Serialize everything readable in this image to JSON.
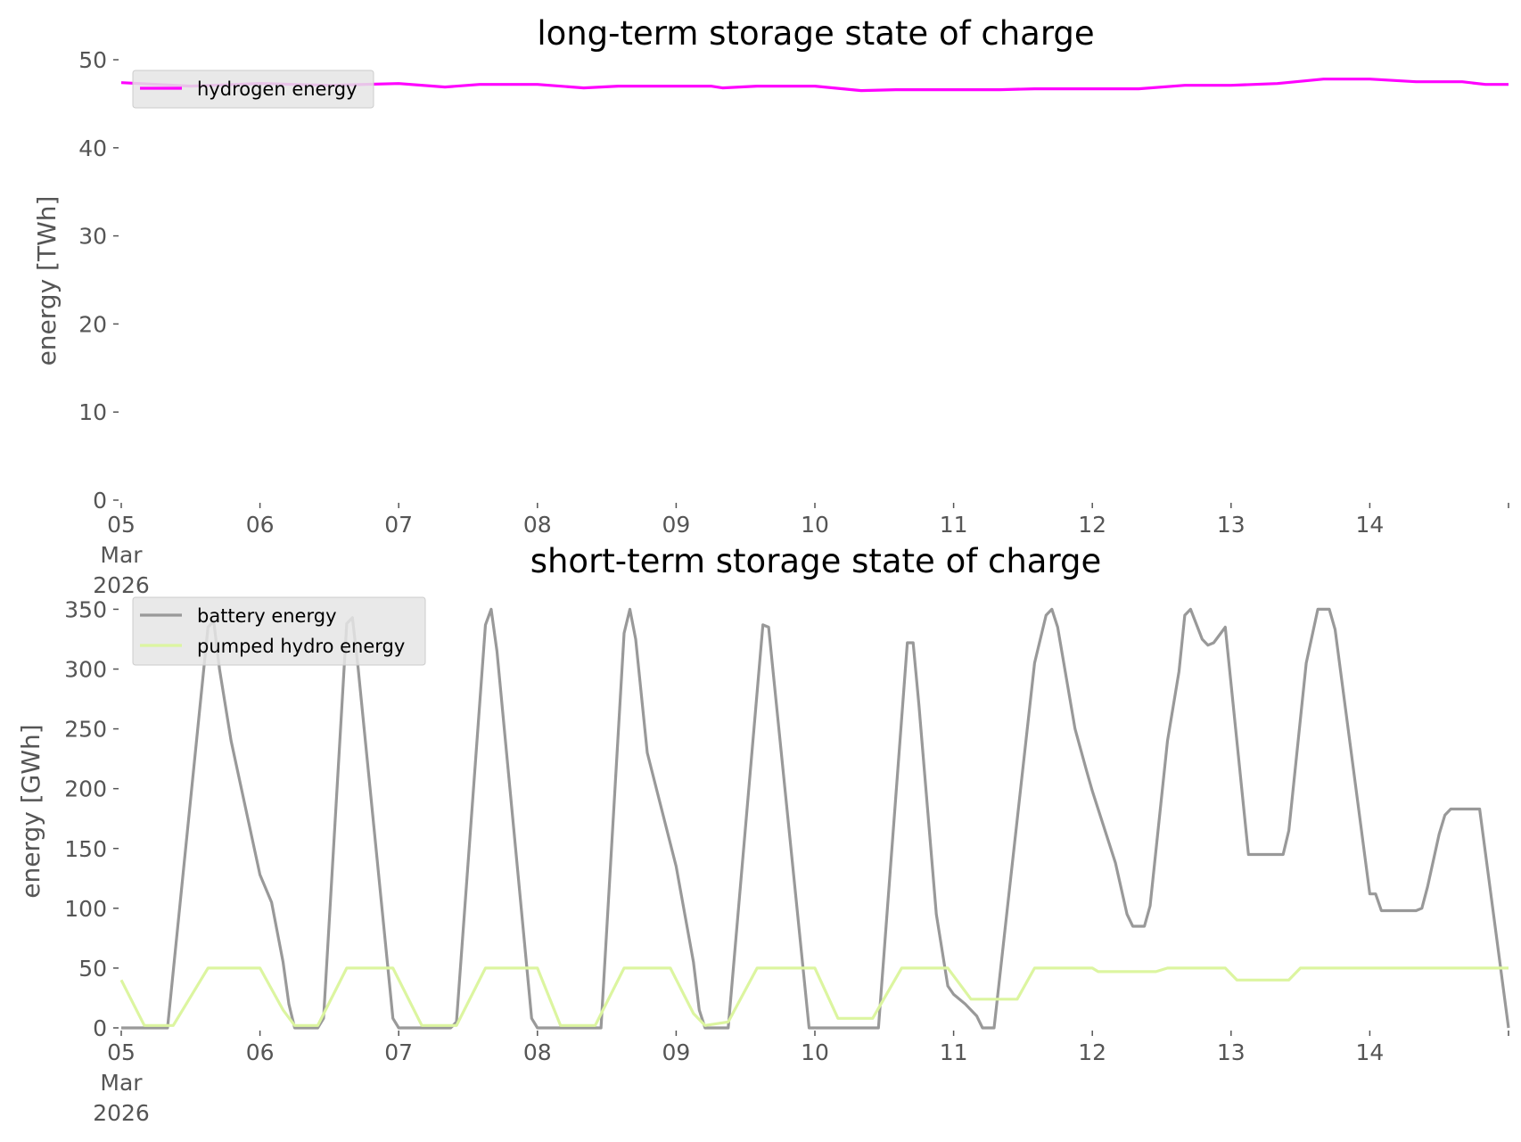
{
  "chart_data": [
    {
      "type": "line",
      "title": "long-term storage state of charge",
      "ylabel": "energy [TWh]",
      "xlabel": "",
      "ylim": [
        0,
        50
      ],
      "yticks": [
        0,
        10,
        20,
        30,
        40,
        50
      ],
      "xlim": [
        "2026-03-05",
        "2026-03-15"
      ],
      "xticks": [
        {
          "value": "2026-03-05",
          "label": [
            "05",
            "Mar",
            "2026"
          ]
        },
        {
          "value": "2026-03-06",
          "label": [
            "06"
          ]
        },
        {
          "value": "2026-03-07",
          "label": [
            "07"
          ]
        },
        {
          "value": "2026-03-08",
          "label": [
            "08"
          ]
        },
        {
          "value": "2026-03-09",
          "label": [
            "09"
          ]
        },
        {
          "value": "2026-03-10",
          "label": [
            "10"
          ]
        },
        {
          "value": "2026-03-11",
          "label": [
            "11"
          ]
        },
        {
          "value": "2026-03-12",
          "label": [
            "12"
          ]
        },
        {
          "value": "2026-03-13",
          "label": [
            "13"
          ]
        },
        {
          "value": "2026-03-14",
          "label": [
            "14"
          ]
        }
      ],
      "grid": false,
      "legend": "top-left",
      "series": [
        {
          "name": "hydrogen energy",
          "color": "#ff00ff",
          "points": [
            [
              "2026-03-05 00:00",
              47.4
            ],
            [
              "2026-03-05 12:00",
              47.0
            ],
            [
              "2026-03-06 00:00",
              47.3
            ],
            [
              "2026-03-06 12:00",
              47.1
            ],
            [
              "2026-03-07 00:00",
              47.3
            ],
            [
              "2026-03-07 08:00",
              46.9
            ],
            [
              "2026-03-07 14:00",
              47.2
            ],
            [
              "2026-03-08 00:00",
              47.2
            ],
            [
              "2026-03-08 08:00",
              46.8
            ],
            [
              "2026-03-08 14:00",
              47.0
            ],
            [
              "2026-03-09 06:00",
              47.0
            ],
            [
              "2026-03-09 08:00",
              46.8
            ],
            [
              "2026-03-09 14:00",
              47.0
            ],
            [
              "2026-03-10 00:00",
              47.0
            ],
            [
              "2026-03-10 08:00",
              46.5
            ],
            [
              "2026-03-10 14:00",
              46.6
            ],
            [
              "2026-03-11 08:00",
              46.6
            ],
            [
              "2026-03-11 14:00",
              46.7
            ],
            [
              "2026-03-12 08:00",
              46.7
            ],
            [
              "2026-03-12 16:00",
              47.1
            ],
            [
              "2026-03-13 00:00",
              47.1
            ],
            [
              "2026-03-13 08:00",
              47.3
            ],
            [
              "2026-03-13 16:00",
              47.8
            ],
            [
              "2026-03-14 00:00",
              47.8
            ],
            [
              "2026-03-14 08:00",
              47.5
            ],
            [
              "2026-03-14 16:00",
              47.5
            ],
            [
              "2026-03-14 20:00",
              47.2
            ],
            [
              "2026-03-15 00:00",
              47.2
            ]
          ]
        }
      ]
    },
    {
      "type": "line",
      "title": "short-term storage state of charge",
      "ylabel": "energy [GWh]",
      "xlabel": "",
      "ylim": [
        0,
        360
      ],
      "yticks": [
        0,
        50,
        100,
        150,
        200,
        250,
        300,
        350
      ],
      "xlim": [
        "2026-03-05",
        "2026-03-15"
      ],
      "xticks": [
        {
          "value": "2026-03-05",
          "label": [
            "05",
            "Mar",
            "2026"
          ]
        },
        {
          "value": "2026-03-06",
          "label": [
            "06"
          ]
        },
        {
          "value": "2026-03-07",
          "label": [
            "07"
          ]
        },
        {
          "value": "2026-03-08",
          "label": [
            "08"
          ]
        },
        {
          "value": "2026-03-09",
          "label": [
            "09"
          ]
        },
        {
          "value": "2026-03-10",
          "label": [
            "10"
          ]
        },
        {
          "value": "2026-03-11",
          "label": [
            "11"
          ]
        },
        {
          "value": "2026-03-12",
          "label": [
            "12"
          ]
        },
        {
          "value": "2026-03-13",
          "label": [
            "13"
          ]
        },
        {
          "value": "2026-03-14",
          "label": [
            "14"
          ]
        }
      ],
      "grid": false,
      "legend": "top-left",
      "series": [
        {
          "name": "battery energy",
          "color": "#999999",
          "points": [
            [
              "2026-03-05 00:00",
              0
            ],
            [
              "2026-03-05 08:00",
              0
            ],
            [
              "2026-03-05 15:00",
              335
            ],
            [
              "2026-03-05 16:00",
              340
            ],
            [
              "2026-03-05 17:00",
              300
            ],
            [
              "2026-03-05 19:00",
              240
            ],
            [
              "2026-03-06 00:00",
              128
            ],
            [
              "2026-03-06 02:00",
              105
            ],
            [
              "2026-03-06 04:00",
              55
            ],
            [
              "2026-03-06 05:00",
              20
            ],
            [
              "2026-03-06 06:00",
              0
            ],
            [
              "2026-03-06 10:00",
              0
            ],
            [
              "2026-03-06 11:00",
              8
            ],
            [
              "2026-03-06 15:00",
              338
            ],
            [
              "2026-03-06 16:00",
              343
            ],
            [
              "2026-03-06 17:00",
              300
            ],
            [
              "2026-03-06 23:00",
              8
            ],
            [
              "2026-03-07 00:00",
              0
            ],
            [
              "2026-03-07 09:00",
              0
            ],
            [
              "2026-03-07 10:00",
              5
            ],
            [
              "2026-03-07 15:00",
              337
            ],
            [
              "2026-03-07 16:00",
              350
            ],
            [
              "2026-03-07 17:00",
              315
            ],
            [
              "2026-03-07 23:00",
              8
            ],
            [
              "2026-03-08 00:00",
              0
            ],
            [
              "2026-03-08 11:00",
              0
            ],
            [
              "2026-03-08 15:00",
              330
            ],
            [
              "2026-03-08 16:00",
              350
            ],
            [
              "2026-03-08 17:00",
              325
            ],
            [
              "2026-03-08 19:00",
              230
            ],
            [
              "2026-03-09 00:00",
              135
            ],
            [
              "2026-03-09 03:00",
              55
            ],
            [
              "2026-03-09 04:00",
              15
            ],
            [
              "2026-03-09 05:00",
              0
            ],
            [
              "2026-03-09 09:00",
              0
            ],
            [
              "2026-03-09 15:00",
              337
            ],
            [
              "2026-03-09 16:00",
              335
            ],
            [
              "2026-03-09 23:00",
              0
            ],
            [
              "2026-03-10 00:00",
              0
            ],
            [
              "2026-03-10 11:00",
              0
            ],
            [
              "2026-03-10 16:00",
              322
            ],
            [
              "2026-03-10 17:00",
              322
            ],
            [
              "2026-03-10 18:00",
              270
            ],
            [
              "2026-03-10 21:00",
              95
            ],
            [
              "2026-03-10 23:00",
              35
            ],
            [
              "2026-03-11 00:00",
              28
            ],
            [
              "2026-03-11 02:00",
              20
            ],
            [
              "2026-03-11 04:00",
              10
            ],
            [
              "2026-03-11 05:00",
              0
            ],
            [
              "2026-03-11 07:00",
              0
            ],
            [
              "2026-03-11 14:00",
              305
            ],
            [
              "2026-03-11 16:00",
              345
            ],
            [
              "2026-03-11 17:00",
              350
            ],
            [
              "2026-03-11 18:00",
              335
            ],
            [
              "2026-03-11 21:00",
              250
            ],
            [
              "2026-03-11 23:00",
              215
            ],
            [
              "2026-03-12 00:00",
              198
            ],
            [
              "2026-03-12 04:00",
              138
            ],
            [
              "2026-03-12 06:00",
              95
            ],
            [
              "2026-03-12 07:00",
              85
            ],
            [
              "2026-03-12 09:00",
              85
            ],
            [
              "2026-03-12 10:00",
              102
            ],
            [
              "2026-03-12 13:00",
              240
            ],
            [
              "2026-03-12 15:00",
              298
            ],
            [
              "2026-03-12 16:00",
              345
            ],
            [
              "2026-03-12 17:00",
              350
            ],
            [
              "2026-03-12 19:00",
              325
            ],
            [
              "2026-03-12 20:00",
              320
            ],
            [
              "2026-03-12 21:00",
              322
            ],
            [
              "2026-03-12 23:00",
              335
            ],
            [
              "2026-03-13 03:00",
              145
            ],
            [
              "2026-03-13 09:00",
              145
            ],
            [
              "2026-03-13 10:00",
              165
            ],
            [
              "2026-03-13 13:00",
              305
            ],
            [
              "2026-03-13 15:00",
              350
            ],
            [
              "2026-03-13 17:00",
              350
            ],
            [
              "2026-03-13 18:00",
              333
            ],
            [
              "2026-03-14 00:00",
              112
            ],
            [
              "2026-03-14 01:00",
              112
            ],
            [
              "2026-03-14 02:00",
              98
            ],
            [
              "2026-03-14 08:00",
              98
            ],
            [
              "2026-03-14 09:00",
              100
            ],
            [
              "2026-03-14 10:00",
              118
            ],
            [
              "2026-03-14 12:00",
              162
            ],
            [
              "2026-03-14 13:00",
              178
            ],
            [
              "2026-03-14 14:00",
              183
            ],
            [
              "2026-03-14 19:00",
              183
            ],
            [
              "2026-03-15 00:00",
              0
            ]
          ]
        },
        {
          "name": "pumped hydro energy",
          "color": "#dcf5a0",
          "points": [
            [
              "2026-03-05 00:00",
              40
            ],
            [
              "2026-03-05 04:00",
              2
            ],
            [
              "2026-03-05 09:00",
              2
            ],
            [
              "2026-03-05 15:00",
              50
            ],
            [
              "2026-03-06 00:00",
              50
            ],
            [
              "2026-03-06 04:00",
              15
            ],
            [
              "2026-03-06 06:00",
              2
            ],
            [
              "2026-03-06 10:00",
              2
            ],
            [
              "2026-03-06 15:00",
              50
            ],
            [
              "2026-03-06 23:00",
              50
            ],
            [
              "2026-03-07 04:00",
              2
            ],
            [
              "2026-03-07 10:00",
              2
            ],
            [
              "2026-03-07 15:00",
              50
            ],
            [
              "2026-03-08 00:00",
              50
            ],
            [
              "2026-03-08 04:00",
              2
            ],
            [
              "2026-03-08 10:00",
              2
            ],
            [
              "2026-03-08 15:00",
              50
            ],
            [
              "2026-03-08 23:00",
              50
            ],
            [
              "2026-03-09 03:00",
              12
            ],
            [
              "2026-03-09 05:00",
              2
            ],
            [
              "2026-03-09 09:00",
              5
            ],
            [
              "2026-03-09 14:00",
              50
            ],
            [
              "2026-03-10 00:00",
              50
            ],
            [
              "2026-03-10 04:00",
              8
            ],
            [
              "2026-03-10 10:00",
              8
            ],
            [
              "2026-03-10 15:00",
              50
            ],
            [
              "2026-03-10 23:00",
              50
            ],
            [
              "2026-03-11 03:00",
              24
            ],
            [
              "2026-03-11 11:00",
              24
            ],
            [
              "2026-03-11 14:00",
              50
            ],
            [
              "2026-03-12 00:00",
              50
            ],
            [
              "2026-03-12 01:00",
              47
            ],
            [
              "2026-03-12 11:00",
              47
            ],
            [
              "2026-03-12 13:00",
              50
            ],
            [
              "2026-03-12 23:00",
              50
            ],
            [
              "2026-03-13 01:00",
              40
            ],
            [
              "2026-03-13 10:00",
              40
            ],
            [
              "2026-03-13 12:00",
              50
            ],
            [
              "2026-03-15 00:00",
              50
            ]
          ]
        }
      ]
    }
  ]
}
